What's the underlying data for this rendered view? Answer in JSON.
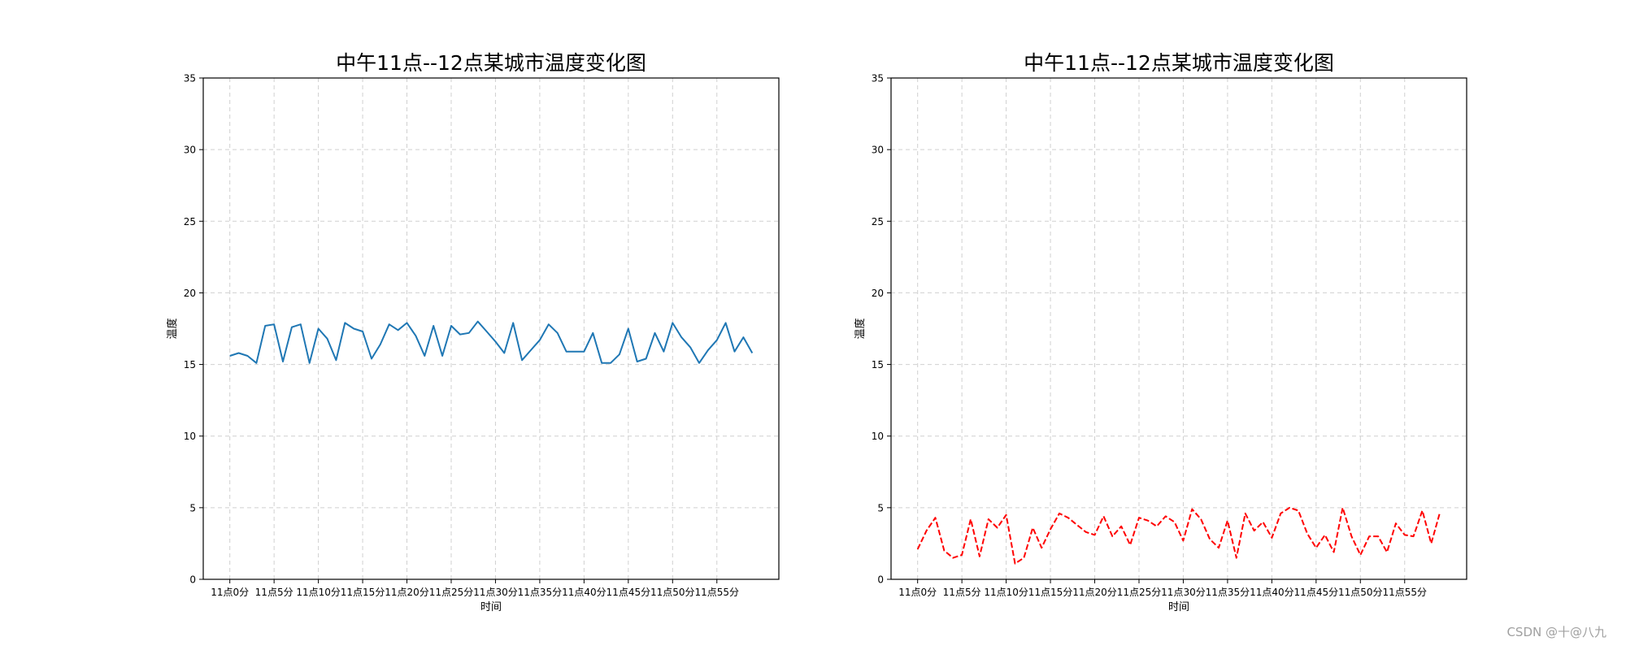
{
  "watermark": "CSDN @十@八九",
  "chart_data": [
    {
      "type": "line",
      "title": "中午11点--12点某城市温度变化图",
      "xlabel": "时间",
      "ylabel": "温度",
      "ylim": [
        0,
        35
      ],
      "yticks": [
        0,
        5,
        10,
        15,
        20,
        25,
        30,
        35
      ],
      "xlim": [
        -3,
        62
      ],
      "xticks": [
        0,
        5,
        10,
        15,
        20,
        25,
        30,
        35,
        40,
        45,
        50,
        55
      ],
      "xtick_labels": [
        "11点0分",
        "11点5分",
        "11点10分",
        "11点15分",
        "11点20分",
        "11点25分",
        "11点30分",
        "11点35分",
        "11点40分",
        "11点45分",
        "11点50分",
        "11点55分"
      ],
      "grid": true,
      "series": [
        {
          "color": "#1f77b4",
          "linestyle": "solid",
          "x": [
            0,
            1,
            2,
            3,
            4,
            5,
            6,
            7,
            8,
            9,
            10,
            11,
            12,
            13,
            14,
            15,
            16,
            17,
            18,
            19,
            20,
            21,
            22,
            23,
            24,
            25,
            26,
            27,
            28,
            29,
            30,
            31,
            32,
            33,
            34,
            35,
            36,
            37,
            38,
            39,
            40,
            41,
            42,
            43,
            44,
            45,
            46,
            47,
            48,
            49,
            50,
            51,
            52,
            53,
            54,
            55,
            56,
            57,
            58,
            59
          ],
          "values": [
            15.6,
            15.8,
            15.6,
            15.1,
            17.7,
            17.8,
            15.2,
            17.6,
            17.8,
            15.1,
            17.5,
            16.8,
            15.3,
            17.9,
            17.5,
            17.3,
            15.4,
            16.4,
            17.8,
            17.4,
            17.9,
            17.0,
            15.6,
            17.7,
            15.6,
            17.7,
            17.1,
            17.2,
            18.0,
            17.3,
            16.6,
            15.8,
            17.9,
            15.3,
            16.0,
            16.7,
            17.8,
            17.2,
            15.9,
            15.9,
            15.9,
            17.2,
            15.1,
            15.1,
            15.7,
            17.5,
            15.2,
            15.4,
            17.2,
            15.9,
            17.9,
            16.9,
            16.2,
            15.1,
            16.0,
            16.7,
            17.9,
            15.9,
            16.9,
            15.8
          ]
        }
      ]
    },
    {
      "type": "line",
      "title": "中午11点--12点某城市温度变化图",
      "xlabel": "时间",
      "ylabel": "温度",
      "ylim": [
        0,
        35
      ],
      "yticks": [
        0,
        5,
        10,
        15,
        20,
        25,
        30,
        35
      ],
      "xlim": [
        -3,
        62
      ],
      "xticks": [
        0,
        5,
        10,
        15,
        20,
        25,
        30,
        35,
        40,
        45,
        50,
        55
      ],
      "xtick_labels": [
        "11点0分",
        "11点5分",
        "11点10分",
        "11点15分",
        "11点20分",
        "11点25分",
        "11点30分",
        "11点35分",
        "11点40分",
        "11点45分",
        "11点50分",
        "11点55分"
      ],
      "grid": true,
      "series": [
        {
          "color": "#ff0000",
          "linestyle": "dashed",
          "x": [
            0,
            1,
            2,
            3,
            4,
            5,
            6,
            7,
            8,
            9,
            10,
            11,
            12,
            13,
            14,
            15,
            16,
            17,
            18,
            19,
            20,
            21,
            22,
            23,
            24,
            25,
            26,
            27,
            28,
            29,
            30,
            31,
            32,
            33,
            34,
            35,
            36,
            37,
            38,
            39,
            40,
            41,
            42,
            43,
            44,
            45,
            46,
            47,
            48,
            49,
            50,
            51,
            52,
            53,
            54,
            55,
            56,
            57,
            58,
            59
          ],
          "values": [
            2.1,
            3.4,
            4.3,
            2.0,
            1.5,
            1.7,
            4.2,
            1.6,
            4.2,
            3.6,
            4.5,
            1.1,
            1.5,
            3.6,
            2.2,
            3.5,
            4.6,
            4.3,
            3.8,
            3.3,
            3.1,
            4.4,
            3.0,
            3.7,
            2.4,
            4.3,
            4.1,
            3.7,
            4.4,
            4.0,
            2.7,
            4.9,
            4.2,
            2.8,
            2.2,
            4.1,
            1.5,
            4.6,
            3.4,
            4.0,
            2.9,
            4.6,
            5.0,
            4.8,
            3.2,
            2.2,
            3.1,
            1.9,
            5.0,
            3.0,
            1.7,
            3.0,
            3.0,
            1.9,
            3.9,
            3.1,
            3.0,
            4.8,
            2.5,
            4.7
          ]
        }
      ]
    }
  ]
}
